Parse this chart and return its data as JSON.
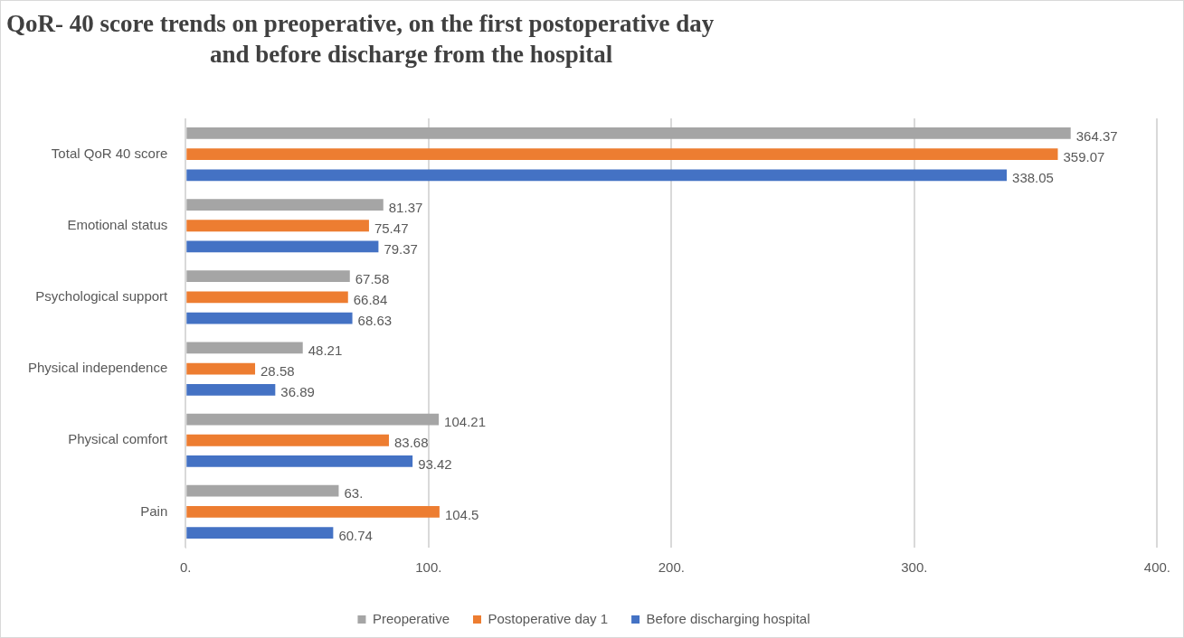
{
  "chart_data": {
    "type": "bar",
    "orientation": "horizontal",
    "title": "QoR- 40 score trends on preoperative, on the first postoperative day\nand before discharge from the hospital",
    "categories": [
      "Total QoR 40 score",
      "Emotional status",
      "Psychological support",
      "Physical independence",
      "Physical comfort",
      "Pain"
    ],
    "series": [
      {
        "name": "Preoperative",
        "color": "#a5a5a5",
        "values": [
          364.37,
          81.37,
          67.58,
          48.21,
          104.21,
          63
        ],
        "value_labels": [
          "364.37",
          "81.37",
          "67.58",
          "48.21",
          "104.21",
          "63."
        ]
      },
      {
        "name": "Postoperative day 1",
        "color": "#ed7d31",
        "values": [
          359.07,
          75.47,
          66.84,
          28.58,
          83.68,
          104.5
        ],
        "value_labels": [
          "359.07",
          "75.47",
          "66.84",
          "28.58",
          "83.68",
          "104.5"
        ]
      },
      {
        "name": "Before discharging hospital",
        "color": "#4472c4",
        "values": [
          338.05,
          79.37,
          68.63,
          36.89,
          93.42,
          60.74
        ],
        "value_labels": [
          "338.05",
          "79.37",
          "68.63",
          "36.89",
          "93.42",
          "60.74"
        ]
      }
    ],
    "xlim": [
      0,
      400
    ],
    "xticks": [
      {
        "value": 0,
        "label": "0."
      },
      {
        "value": 100,
        "label": "100."
      },
      {
        "value": 200,
        "label": "200."
      },
      {
        "value": 300,
        "label": "300."
      },
      {
        "value": 400,
        "label": "400."
      }
    ],
    "grid": "x",
    "legend": "bottom"
  }
}
